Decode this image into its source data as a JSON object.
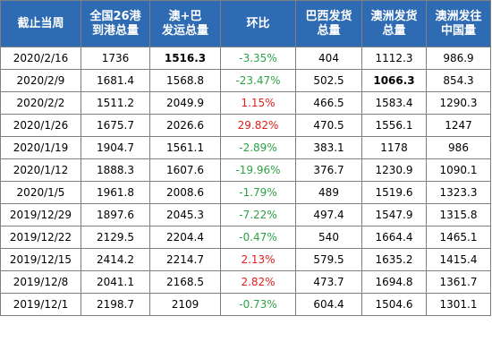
{
  "table": {
    "headers": [
      "截止当周",
      "全国26港\n到港总量",
      "澳+巴\n发运总量",
      "环比",
      "巴西发货\n总量",
      "澳洲发货\n总量",
      "澳洲发往\n中国量"
    ],
    "rows": [
      {
        "week": "2020/2/16",
        "arrivals": "1736",
        "shipments": "1516.3",
        "mom": "-3.35%",
        "brazil": "404",
        "australia": "1112.3",
        "aus_china": "986.9"
      },
      {
        "week": "2020/2/9",
        "arrivals": "1681.4",
        "shipments": "1568.8",
        "mom": "-23.47%",
        "brazil": "502.5",
        "australia": "1066.3",
        "aus_china": "854.3"
      },
      {
        "week": "2020/2/2",
        "arrivals": "1511.2",
        "shipments": "2049.9",
        "mom": "1.15%",
        "brazil": "466.5",
        "australia": "1583.4",
        "aus_china": "1290.3"
      },
      {
        "week": "2020/1/26",
        "arrivals": "1675.7",
        "shipments": "2026.6",
        "mom": "29.82%",
        "brazil": "470.5",
        "australia": "1556.1",
        "aus_china": "1247"
      },
      {
        "week": "2020/1/19",
        "arrivals": "1904.7",
        "shipments": "1561.1",
        "mom": "-2.89%",
        "brazil": "383.1",
        "australia": "1178",
        "aus_china": "986"
      },
      {
        "week": "2020/1/12",
        "arrivals": "1888.3",
        "shipments": "1607.6",
        "mom": "-19.96%",
        "brazil": "376.7",
        "australia": "1230.9",
        "aus_china": "1090.1"
      },
      {
        "week": "2020/1/5",
        "arrivals": "1961.8",
        "shipments": "2008.6",
        "mom": "-1.79%",
        "brazil": "489",
        "australia": "1519.6",
        "aus_china": "1323.3"
      },
      {
        "week": "2019/12/29",
        "arrivals": "1897.6",
        "shipments": "2045.3",
        "mom": "-7.22%",
        "brazil": "497.4",
        "australia": "1547.9",
        "aus_china": "1315.8"
      },
      {
        "week": "2019/12/22",
        "arrivals": "2129.5",
        "shipments": "2204.4",
        "mom": "-0.47%",
        "brazil": "540",
        "australia": "1664.4",
        "aus_china": "1465.1"
      },
      {
        "week": "2019/12/15",
        "arrivals": "2414.2",
        "shipments": "2214.7",
        "mom": "2.13%",
        "brazil": "579.5",
        "australia": "1635.2",
        "aus_china": "1415.4"
      },
      {
        "week": "2019/12/8",
        "arrivals": "2041.1",
        "shipments": "2168.5",
        "mom": "2.82%",
        "brazil": "473.7",
        "australia": "1694.8",
        "aus_china": "1361.7"
      },
      {
        "week": "2019/12/1",
        "arrivals": "2198.7",
        "shipments": "2109",
        "mom": "-0.73%",
        "brazil": "604.4",
        "australia": "1504.6",
        "aus_china": "1301.1"
      }
    ],
    "bold_cells": [
      {
        "row": 0,
        "column": "shipments"
      },
      {
        "row": 1,
        "column": "australia"
      }
    ],
    "colors": {
      "header_background": "#2f6bb3",
      "header_text": "#ffffff",
      "negative_change": "#2ea345",
      "positive_change": "#e0201b",
      "border": "#7f7f7f"
    }
  }
}
